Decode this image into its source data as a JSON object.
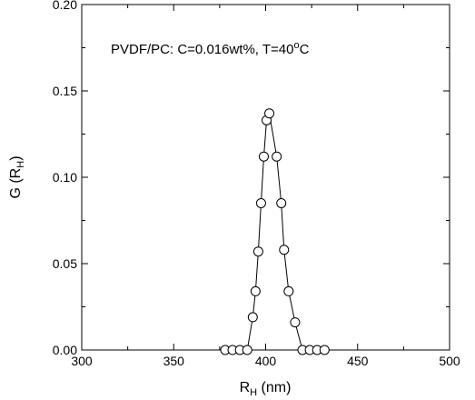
{
  "chart_data": {
    "type": "scatter",
    "annotation": {
      "prefix": "PVDF/PC:  C=0.016wt%, T=40",
      "sup": "o",
      "suffix": "C"
    },
    "xlabel": {
      "main": "R",
      "sub": "H",
      "unit": " (nm)"
    },
    "ylabel": {
      "main": "G (R",
      "sub": "H",
      "close": ")"
    },
    "xlim": [
      300,
      500
    ],
    "ylim": [
      0.0,
      0.2
    ],
    "x_ticks": [
      300,
      350,
      400,
      450,
      500
    ],
    "x_tick_labels": [
      "300",
      "350",
      "400",
      "450",
      "500"
    ],
    "y_ticks": [
      0.0,
      0.05,
      0.1,
      0.15,
      0.2
    ],
    "y_tick_labels": [
      "0.00",
      "0.05",
      "0.10",
      "0.15",
      "0.20"
    ],
    "grid": false,
    "series": [
      {
        "marker": "open-circle",
        "line": true,
        "points": [
          [
            378,
            0.0
          ],
          [
            382,
            0.0
          ],
          [
            386,
            0.0
          ],
          [
            390,
            0.0
          ],
          [
            393,
            0.019
          ],
          [
            394.5,
            0.034
          ],
          [
            396,
            0.057
          ],
          [
            397.5,
            0.085
          ],
          [
            399,
            0.112
          ],
          [
            400.5,
            0.133
          ],
          [
            402,
            0.137
          ],
          [
            406,
            0.112
          ],
          [
            408.5,
            0.085
          ],
          [
            410,
            0.058
          ],
          [
            412.5,
            0.034
          ],
          [
            416,
            0.016
          ],
          [
            420,
            0.0
          ],
          [
            424,
            0.0
          ],
          [
            428,
            0.0
          ],
          [
            432,
            0.0
          ]
        ]
      }
    ],
    "colors": {
      "marker_fill": "#ffffff",
      "stroke": "#000000"
    }
  }
}
